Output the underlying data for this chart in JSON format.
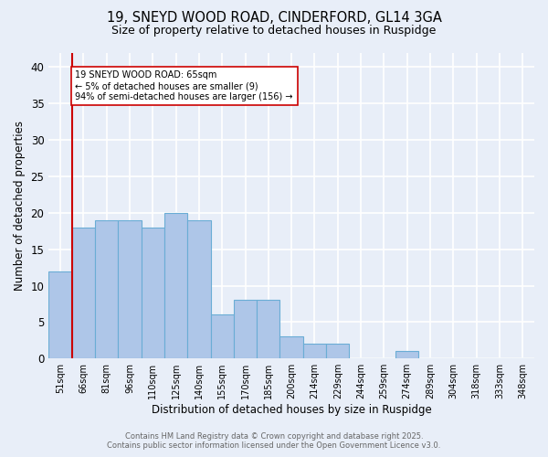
{
  "title_line1": "19, SNEYD WOOD ROAD, CINDERFORD, GL14 3GA",
  "title_line2": "Size of property relative to detached houses in Ruspidge",
  "xlabel": "Distribution of detached houses by size in Ruspidge",
  "ylabel": "Number of detached properties",
  "bar_labels": [
    "51sqm",
    "66sqm",
    "81sqm",
    "96sqm",
    "110sqm",
    "125sqm",
    "140sqm",
    "155sqm",
    "170sqm",
    "185sqm",
    "200sqm",
    "214sqm",
    "229sqm",
    "244sqm",
    "259sqm",
    "274sqm",
    "289sqm",
    "304sqm",
    "318sqm",
    "333sqm",
    "348sqm"
  ],
  "bar_values": [
    12,
    18,
    19,
    19,
    18,
    20,
    19,
    6,
    8,
    8,
    3,
    2,
    2,
    0,
    0,
    1,
    0,
    0,
    0,
    0,
    0
  ],
  "bar_color": "#aec6e8",
  "bar_edgecolor": "#6aadd5",
  "background_color": "#e8eef8",
  "grid_color": "#ffffff",
  "ylim": [
    0,
    42
  ],
  "yticks": [
    0,
    5,
    10,
    15,
    20,
    25,
    30,
    35,
    40
  ],
  "reference_line_x": 1.0,
  "reference_line_color": "#cc0000",
  "annotation_text": "19 SNEYD WOOD ROAD: 65sqm\n← 5% of detached houses are smaller (9)\n94% of semi-detached houses are larger (156) →",
  "annotation_box_facecolor": "#ffffff",
  "annotation_box_edgecolor": "#cc0000",
  "footer_line1": "Contains HM Land Registry data © Crown copyright and database right 2025.",
  "footer_line2": "Contains public sector information licensed under the Open Government Licence v3.0."
}
